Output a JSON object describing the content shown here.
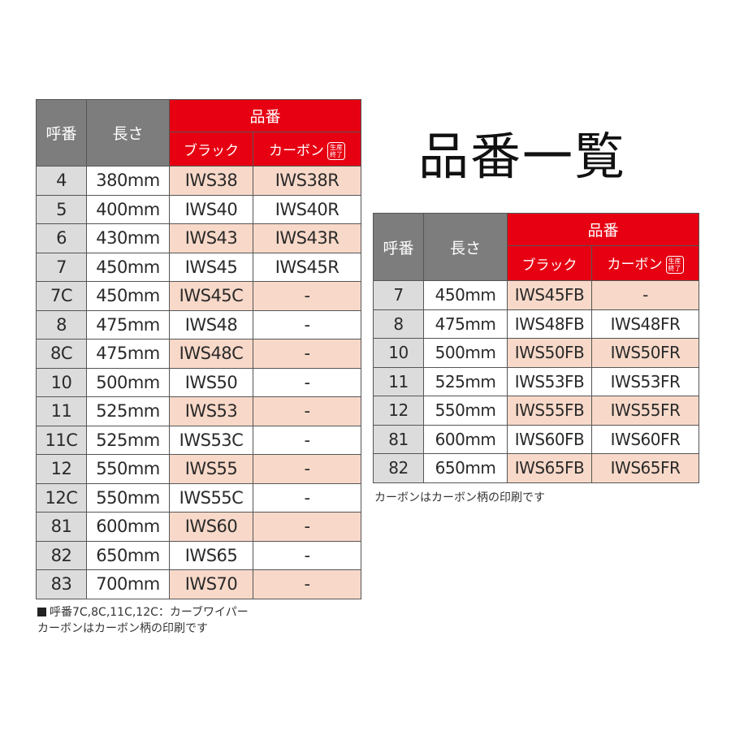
{
  "title": "品番一覧",
  "headers": {
    "yobiban": "呼番",
    "nagasa": "長さ",
    "hinban": "品番",
    "black": "ブラック",
    "carbon": "カーボン",
    "discontinued": "生産終了"
  },
  "left_table": {
    "rows": [
      {
        "yobi": "4",
        "length": "380mm",
        "black": "IWS38",
        "carbon": "IWS38R"
      },
      {
        "yobi": "5",
        "length": "400mm",
        "black": "IWS40",
        "carbon": "IWS40R"
      },
      {
        "yobi": "6",
        "length": "430mm",
        "black": "IWS43",
        "carbon": "IWS43R"
      },
      {
        "yobi": "7",
        "length": "450mm",
        "black": "IWS45",
        "carbon": "IWS45R"
      },
      {
        "yobi": "7C",
        "length": "450mm",
        "black": "IWS45C",
        "carbon": "-"
      },
      {
        "yobi": "8",
        "length": "475mm",
        "black": "IWS48",
        "carbon": "-"
      },
      {
        "yobi": "8C",
        "length": "475mm",
        "black": "IWS48C",
        "carbon": "-"
      },
      {
        "yobi": "10",
        "length": "500mm",
        "black": "IWS50",
        "carbon": "-"
      },
      {
        "yobi": "11",
        "length": "525mm",
        "black": "IWS53",
        "carbon": "-"
      },
      {
        "yobi": "11C",
        "length": "525mm",
        "black": "IWS53C",
        "carbon": "-"
      },
      {
        "yobi": "12",
        "length": "550mm",
        "black": "IWS55",
        "carbon": "-"
      },
      {
        "yobi": "12C",
        "length": "550mm",
        "black": "IWS55C",
        "carbon": "-"
      },
      {
        "yobi": "81",
        "length": "600mm",
        "black": "IWS60",
        "carbon": "-"
      },
      {
        "yobi": "82",
        "length": "650mm",
        "black": "IWS65",
        "carbon": "-"
      },
      {
        "yobi": "83",
        "length": "700mm",
        "black": "IWS70",
        "carbon": "-"
      }
    ]
  },
  "right_table": {
    "rows": [
      {
        "yobi": "7",
        "length": "450mm",
        "black": "IWS45FB",
        "carbon": "-"
      },
      {
        "yobi": "8",
        "length": "475mm",
        "black": "IWS48FB",
        "carbon": "IWS48FR"
      },
      {
        "yobi": "10",
        "length": "500mm",
        "black": "IWS50FB",
        "carbon": "IWS50FR"
      },
      {
        "yobi": "11",
        "length": "525mm",
        "black": "IWS53FB",
        "carbon": "IWS53FR"
      },
      {
        "yobi": "12",
        "length": "550mm",
        "black": "IWS55FB",
        "carbon": "IWS55FR"
      },
      {
        "yobi": "81",
        "length": "600mm",
        "black": "IWS60FB",
        "carbon": "IWS60FR"
      },
      {
        "yobi": "82",
        "length": "650mm",
        "black": "IWS65FB",
        "carbon": "IWS65FR"
      }
    ]
  },
  "notes": {
    "left_line1": "呼番7C,8C,11C,12C：カーブワイパー",
    "left_line2": "カーボンはカーボン柄の印刷です",
    "right_line1": "カーボンはカーボン柄の印刷です"
  }
}
